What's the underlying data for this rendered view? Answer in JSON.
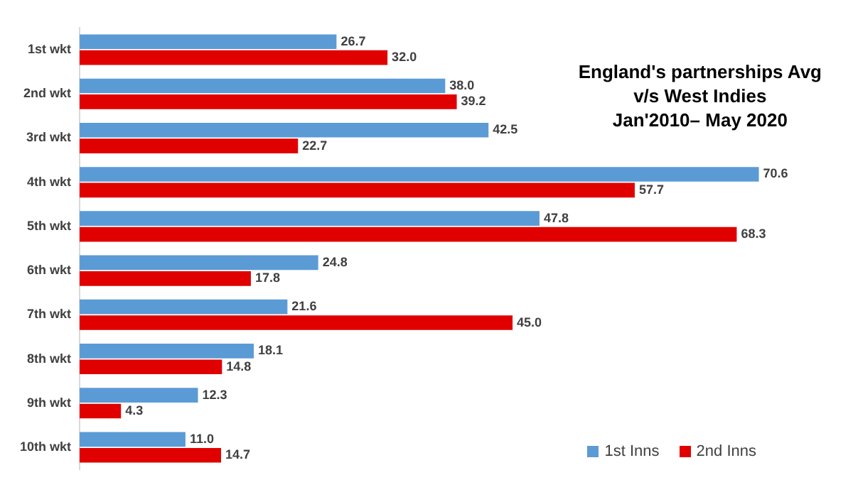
{
  "chart_data": {
    "type": "bar",
    "orientation": "horizontal",
    "title": "England's partnerships Avg\nv/s West Indies\nJan'2010– May 2020",
    "categories": [
      "1st wkt",
      "2nd wkt",
      "3rd wkt",
      "4th wkt",
      "5th wkt",
      "6th wkt",
      "7th wkt",
      "8th wkt",
      "9th wkt",
      "10th wkt"
    ],
    "series": [
      {
        "name": "1st Inns",
        "color": "#5b9bd5",
        "values": [
          26.7,
          38.0,
          42.5,
          70.6,
          47.8,
          24.8,
          21.6,
          18.1,
          12.3,
          11.0
        ],
        "value_labels": [
          "26.7",
          "38.0",
          "42.5",
          "70.6",
          "47.8",
          "24.8",
          "21.6",
          "18.1",
          "12.3",
          "11.0"
        ]
      },
      {
        "name": "2nd Inns",
        "color": "#e00000",
        "values": [
          32.0,
          39.2,
          22.7,
          57.7,
          68.3,
          17.8,
          45.0,
          14.8,
          4.3,
          14.7
        ],
        "value_labels": [
          "32.0",
          "39.2",
          "22.7",
          "57.7",
          "68.3",
          "17.8",
          "45.0",
          "14.8",
          "4.3",
          "14.7"
        ]
      }
    ],
    "legend": "bottom right",
    "grid": false
  }
}
